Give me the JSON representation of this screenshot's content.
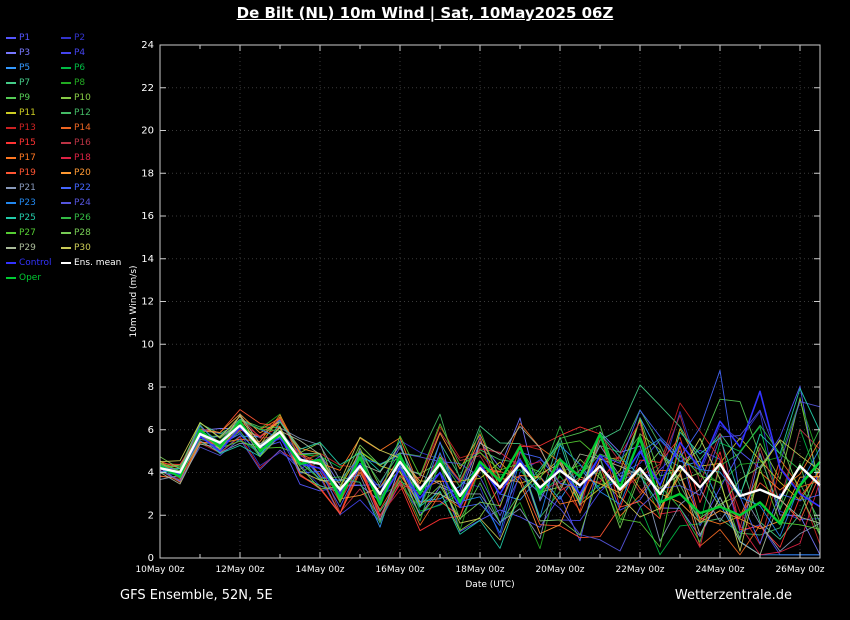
{
  "title": "De Bilt  (NL)  10m Wind | Sat, 10May2025 06Z",
  "footer": {
    "left": "GFS Ensemble, 52N, 5E",
    "right": "Wetterzentrale.de"
  },
  "chart_data": {
    "type": "line",
    "title": "De Bilt  (NL)  10m Wind | Sat, 10May2025 06Z",
    "xlabel": "Date (UTC)",
    "ylabel": "10m Wind (m/s)",
    "ylim": [
      0,
      24
    ],
    "ytick_step": 2,
    "x_days": 16.5,
    "step_days": 0.5,
    "grid": "dotted",
    "x_ticks": [
      {
        "day": 0,
        "label": "10May 00z"
      },
      {
        "day": 2,
        "label": "12May 00z"
      },
      {
        "day": 4,
        "label": "14May 00z"
      },
      {
        "day": 6,
        "label": "16May 00z"
      },
      {
        "day": 8,
        "label": "18May 00z"
      },
      {
        "day": 10,
        "label": "20May 00z"
      },
      {
        "day": 12,
        "label": "22May 00z"
      },
      {
        "day": 14,
        "label": "24May 00z"
      },
      {
        "day": 16,
        "label": "26May 00z"
      }
    ],
    "series": [
      {
        "name": "Control",
        "color": "#3333ff",
        "width": 1.6,
        "values": [
          4.2,
          3.9,
          5.7,
          5.0,
          6.1,
          5.2,
          5.6,
          4.4,
          4.2,
          3.0,
          4.4,
          2.6,
          4.2,
          2.8,
          4.0,
          2.4,
          4.4,
          3.0,
          4.6,
          3.2,
          4.2,
          3.0,
          4.8,
          3.6,
          5.0,
          3.4,
          5.4,
          4.2,
          6.4,
          5.2,
          7.8,
          4.2,
          3.0,
          2.4
        ]
      },
      {
        "name": "Oper",
        "color": "#00cc33",
        "width": 2.4,
        "values": [
          4.3,
          3.8,
          6.0,
          5.2,
          6.4,
          5.0,
          5.8,
          4.4,
          4.6,
          2.8,
          4.7,
          2.5,
          4.8,
          3.0,
          4.6,
          2.6,
          4.5,
          3.6,
          5.2,
          3.0,
          4.6,
          3.8,
          5.8,
          3.3,
          5.6,
          2.6,
          3.0,
          2.1,
          2.4,
          2.0,
          2.6,
          1.6,
          3.4,
          4.5
        ]
      },
      {
        "name": "Ens. mean",
        "color": "#ffffff",
        "width": 2.4,
        "values": [
          4.2,
          4.0,
          5.8,
          5.4,
          6.2,
          5.2,
          5.9,
          4.6,
          4.4,
          3.2,
          4.3,
          3.0,
          4.5,
          3.2,
          4.4,
          2.9,
          4.2,
          3.3,
          4.4,
          3.3,
          4.1,
          3.4,
          4.3,
          3.2,
          4.2,
          3.0,
          4.3,
          3.3,
          4.4,
          2.9,
          3.2,
          2.8,
          4.3,
          3.4
        ]
      }
    ],
    "members": [
      {
        "name": "P1",
        "color": "#5555ff",
        "seed": 1
      },
      {
        "name": "P2",
        "color": "#3333cc",
        "seed": 2
      },
      {
        "name": "P3",
        "color": "#7777ff",
        "seed": 3
      },
      {
        "name": "P4",
        "color": "#4444ee",
        "seed": 4
      },
      {
        "name": "P5",
        "color": "#3399ff",
        "seed": 5
      },
      {
        "name": "P6",
        "color": "#00bb44",
        "seed": 6
      },
      {
        "name": "P7",
        "color": "#44cc88",
        "seed": 7
      },
      {
        "name": "P8",
        "color": "#22aa22",
        "seed": 8
      },
      {
        "name": "P9",
        "color": "#55cc55",
        "seed": 9
      },
      {
        "name": "P10",
        "color": "#88cc44",
        "seed": 10
      },
      {
        "name": "P11",
        "color": "#cccc22",
        "seed": 11
      },
      {
        "name": "P12",
        "color": "#44bb66",
        "seed": 12
      },
      {
        "name": "P13",
        "color": "#cc2222",
        "seed": 13
      },
      {
        "name": "P14",
        "color": "#ee6622",
        "seed": 14
      },
      {
        "name": "P15",
        "color": "#ff3333",
        "seed": 15
      },
      {
        "name": "P16",
        "color": "#bb3344",
        "seed": 16
      },
      {
        "name": "P17",
        "color": "#ff7722",
        "seed": 17
      },
      {
        "name": "P18",
        "color": "#dd2244",
        "seed": 18
      },
      {
        "name": "P19",
        "color": "#ff5533",
        "seed": 19
      },
      {
        "name": "P20",
        "color": "#ff9933",
        "seed": 20
      },
      {
        "name": "P21",
        "color": "#8899bb",
        "seed": 21
      },
      {
        "name": "P22",
        "color": "#4466ff",
        "seed": 22
      },
      {
        "name": "P23",
        "color": "#2288ee",
        "seed": 23
      },
      {
        "name": "P24",
        "color": "#5555dd",
        "seed": 24
      },
      {
        "name": "P25",
        "color": "#22ccaa",
        "seed": 25
      },
      {
        "name": "P26",
        "color": "#33bb44",
        "seed": 26
      },
      {
        "name": "P27",
        "color": "#55cc33",
        "seed": 27
      },
      {
        "name": "P28",
        "color": "#77cc55",
        "seed": 28
      },
      {
        "name": "P29",
        "color": "#aabb99",
        "seed": 29
      },
      {
        "name": "P30",
        "color": "#cccc55",
        "seed": 30
      }
    ],
    "member_noise": {
      "base": 0.4,
      "growth_per_step": 0.1,
      "max": 3.6
    },
    "legend_extra": [
      {
        "name": "Control",
        "color": "#3333ff"
      },
      {
        "name": "Ens. mean",
        "color": "#ffffff"
      },
      {
        "name": "Oper",
        "color": "#00cc33"
      }
    ]
  }
}
